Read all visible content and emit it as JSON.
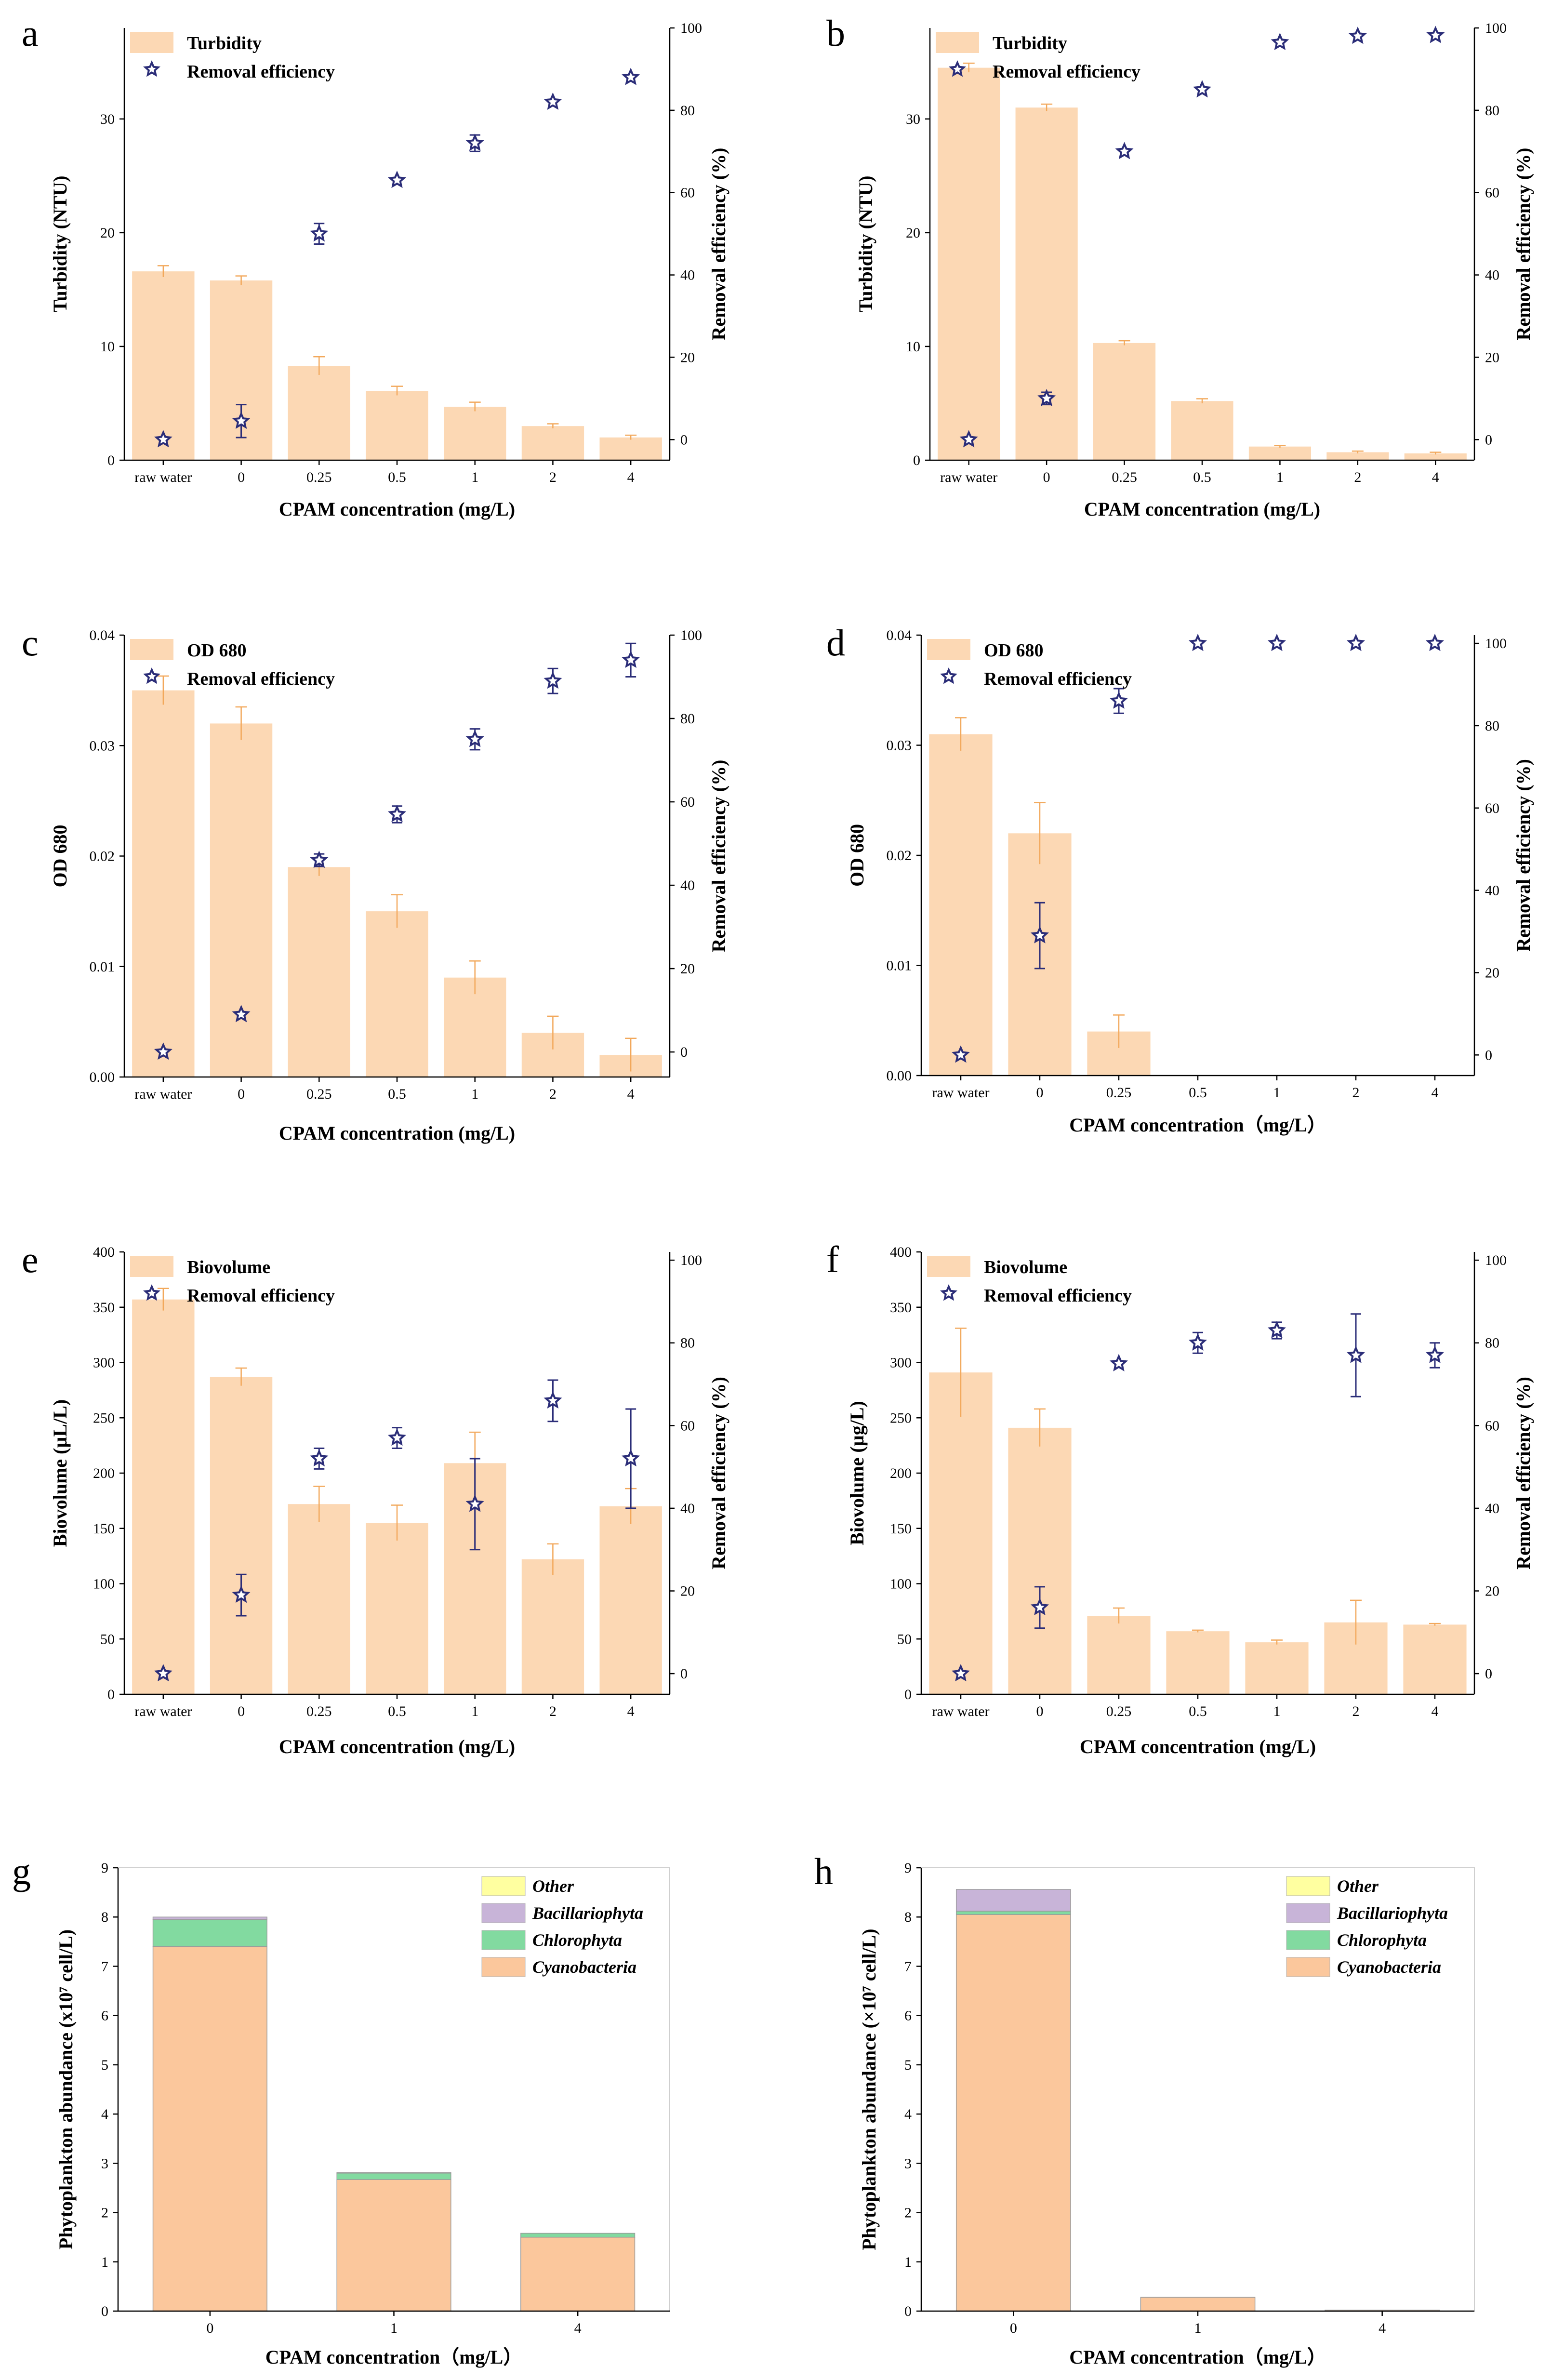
{
  "colors": {
    "bar_fill": "#fcd8b4",
    "err_bar": "#f2a85b",
    "star": "#2b2d78",
    "cyanobacteria": "#fbc79c",
    "chlorophyta": "#82daa0",
    "bacillariophyta": "#c8b4d8",
    "other": "#ffffa0"
  },
  "chart_data": [
    {
      "id": "a",
      "type": "bar",
      "panel_label": "a",
      "xlabel": "CPAM concentration (mg/L)",
      "ylabel": "Turbidity (NTU)",
      "y2label": "Removal efficiency (%)",
      "categories": [
        "raw water",
        "0",
        "0.25",
        "0.5",
        "1",
        "2",
        "4"
      ],
      "ylim": [
        0,
        38
      ],
      "yticks": [
        0,
        10,
        20,
        30
      ],
      "ytick_labels": [
        "0",
        "10",
        "20",
        "30"
      ],
      "y2lim": [
        -5,
        100
      ],
      "y2ticks": [
        0,
        20,
        40,
        60,
        80,
        100
      ],
      "legend": [
        "Turbidity",
        "Removal efficiency"
      ],
      "bars": [
        16.6,
        15.8,
        8.3,
        6.1,
        4.7,
        3.0,
        2.0
      ],
      "bar_err": [
        0.5,
        0.4,
        0.8,
        0.4,
        0.4,
        0.2,
        0.2
      ],
      "stars": [
        0,
        4.5,
        50,
        63,
        72,
        82,
        88
      ],
      "star_err": [
        0,
        4,
        2.5,
        0,
        2,
        0,
        0
      ]
    },
    {
      "id": "b",
      "type": "bar",
      "panel_label": "b",
      "xlabel": "CPAM concentration (mg/L)",
      "ylabel": "Turbidity (NTU)",
      "y2label": "Removal efficiency (%)",
      "categories": [
        "raw water",
        "0",
        "0.25",
        "0.5",
        "1",
        "2",
        "4"
      ],
      "ylim": [
        0,
        38
      ],
      "yticks": [
        0,
        10,
        20,
        30
      ],
      "ytick_labels": [
        "0",
        "10",
        "20",
        "30"
      ],
      "y2lim": [
        -5,
        100
      ],
      "y2ticks": [
        0,
        20,
        40,
        60,
        80,
        100
      ],
      "legend": [
        "Turbidity",
        "Removal efficiency"
      ],
      "bars": [
        34.5,
        31.0,
        10.3,
        5.2,
        1.2,
        0.7,
        0.6
      ],
      "bar_err": [
        0.4,
        0.3,
        0.2,
        0.2,
        0.1,
        0.1,
        0.1
      ],
      "stars": [
        0,
        10,
        70,
        85,
        96.5,
        98,
        98.2
      ],
      "star_err": [
        0,
        1.5,
        0,
        0,
        0,
        0,
        0
      ]
    },
    {
      "id": "c",
      "type": "bar",
      "panel_label": "c",
      "xlabel": "CPAM concentration (mg/L)",
      "ylabel": "OD  680",
      "y2label": "Removal efficiency (%)",
      "categories": [
        "raw water",
        "0",
        "0.25",
        "0.5",
        "1",
        "2",
        "4"
      ],
      "ylim": [
        0,
        0.04
      ],
      "yticks": [
        0,
        0.01,
        0.02,
        0.03,
        0.04
      ],
      "ytick_labels": [
        "0.00",
        "0.01",
        "0.02",
        "0.03",
        "0.04"
      ],
      "y2lim": [
        -6,
        100
      ],
      "y2ticks": [
        0,
        20,
        40,
        60,
        80,
        100
      ],
      "legend": [
        "OD 680",
        "Removal efficiency"
      ],
      "bars": [
        0.035,
        0.032,
        0.019,
        0.015,
        0.009,
        0.004,
        0.002
      ],
      "bar_err": [
        0.0013,
        0.0015,
        0.0008,
        0.0015,
        0.0015,
        0.0015,
        0.0015
      ],
      "stars": [
        0,
        9,
        46,
        57,
        75,
        89,
        94
      ],
      "star_err": [
        0,
        0,
        1.5,
        2,
        2.5,
        3,
        4
      ]
    },
    {
      "id": "d",
      "type": "bar",
      "panel_label": "d",
      "xlabel": "CPAM concentration（mg/L）",
      "ylabel": "OD  680",
      "y2label": "Removal efficiency (%)",
      "categories": [
        "raw water",
        "0",
        "0.25",
        "0.5",
        "1",
        "2",
        "4"
      ],
      "ylim": [
        0,
        0.04
      ],
      "yticks": [
        0,
        0.01,
        0.02,
        0.03,
        0.04
      ],
      "ytick_labels": [
        "0.00",
        "0.01",
        "0.02",
        "0.03",
        "0.04"
      ],
      "y2lim": [
        -5,
        102
      ],
      "y2ticks": [
        0,
        20,
        40,
        60,
        80,
        100
      ],
      "legend": [
        "OD 680",
        "Removal efficiency"
      ],
      "bars": [
        0.031,
        0.022,
        0.004,
        0,
        0,
        0,
        0
      ],
      "bar_err": [
        0.0015,
        0.0028,
        0.0015,
        0,
        0,
        0,
        0
      ],
      "stars": [
        0,
        29,
        86,
        100,
        100,
        100,
        100
      ],
      "star_err": [
        0,
        8,
        3,
        0,
        0,
        0,
        0
      ]
    },
    {
      "id": "e",
      "type": "bar",
      "panel_label": "e",
      "xlabel": "CPAM concentration (mg/L)",
      "ylabel": "Biovolume  (µL/L)",
      "y2label": "Removal efficiency (%)",
      "categories": [
        "raw water",
        "0",
        "0.25",
        "0.5",
        "1",
        "2",
        "4"
      ],
      "ylim": [
        0,
        400
      ],
      "yticks": [
        0,
        50,
        100,
        150,
        200,
        250,
        300,
        350,
        400
      ],
      "ytick_labels": [
        "0",
        "50",
        "100",
        "150",
        "200",
        "250",
        "300",
        "350",
        "400"
      ],
      "y2lim": [
        -5,
        102
      ],
      "y2ticks": [
        0,
        20,
        40,
        60,
        80,
        100
      ],
      "legend": [
        "Biovolume",
        "Removal efficiency"
      ],
      "bars": [
        357,
        287,
        172,
        155,
        209,
        122,
        170
      ],
      "bar_err": [
        10,
        8,
        16,
        16,
        28,
        14,
        16
      ],
      "stars": [
        0,
        19,
        52,
        57,
        41,
        66,
        52
      ],
      "star_err": [
        0,
        5,
        2.5,
        2.5,
        11,
        5,
        12
      ]
    },
    {
      "id": "f",
      "type": "bar",
      "panel_label": "f",
      "xlabel": "CPAM concentration (mg/L)",
      "ylabel": "Biovolume (µg/L)",
      "y2label": "Removal efficiency (%)",
      "categories": [
        "raw water",
        "0",
        "0.25",
        "0.5",
        "1",
        "2",
        "4"
      ],
      "ylim": [
        0,
        400
      ],
      "yticks": [
        0,
        50,
        100,
        150,
        200,
        250,
        300,
        350,
        400
      ],
      "ytick_labels": [
        "0",
        "50",
        "100",
        "150",
        "200",
        "250",
        "300",
        "350",
        "400"
      ],
      "y2lim": [
        -5,
        102
      ],
      "y2ticks": [
        0,
        20,
        40,
        60,
        80,
        100
      ],
      "legend": [
        "Biovolume",
        "Removal efficiency"
      ],
      "bars": [
        291,
        241,
        71,
        57,
        47,
        65,
        63
      ],
      "bar_err": [
        40,
        17,
        7,
        1,
        2,
        20,
        1
      ],
      "stars": [
        0,
        16,
        75,
        80,
        83,
        77,
        77
      ],
      "star_err": [
        0,
        5,
        0,
        2.5,
        2,
        10,
        3
      ]
    },
    {
      "id": "g",
      "type": "bar",
      "panel_label": "g",
      "xlabel": "CPAM concentration（mg/L）",
      "ylabel": "Phytoplankton abundance (x10⁷ cell/L)",
      "categories": [
        "0",
        "1",
        "4"
      ],
      "ylim": [
        0,
        9
      ],
      "yticks": [
        0,
        1,
        2,
        3,
        4,
        5,
        6,
        7,
        8,
        9
      ],
      "legend": [
        "Other",
        "Bacillariophyta",
        "Chlorophyta",
        "Cyanobacteria"
      ],
      "series": [
        {
          "name": "Cyanobacteria",
          "values": [
            7.4,
            2.67,
            1.5
          ]
        },
        {
          "name": "Chlorophyta",
          "values": [
            0.55,
            0.13,
            0.08
          ]
        },
        {
          "name": "Bacillariophyta",
          "values": [
            0.05,
            0.01,
            0
          ]
        },
        {
          "name": "Other",
          "values": [
            0,
            0,
            0
          ]
        }
      ]
    },
    {
      "id": "h",
      "type": "bar",
      "panel_label": "h",
      "xlabel": "CPAM concentration（mg/L）",
      "ylabel": "Phytoplankton abundance (×10⁷ cell/L)",
      "categories": [
        "0",
        "1",
        "4"
      ],
      "ylim": [
        0,
        9
      ],
      "yticks": [
        0,
        1,
        2,
        3,
        4,
        5,
        6,
        7,
        8,
        9
      ],
      "legend": [
        "Other",
        "Bacillariophyta",
        "Chlorophyta",
        "Cyanobacteria"
      ],
      "series": [
        {
          "name": "Cyanobacteria",
          "values": [
            8.05,
            0.28,
            0.02
          ]
        },
        {
          "name": "Chlorophyta",
          "values": [
            0.07,
            0,
            0
          ]
        },
        {
          "name": "Bacillariophyta",
          "values": [
            0.44,
            0,
            0
          ]
        },
        {
          "name": "Other",
          "values": [
            0,
            0,
            0
          ]
        }
      ]
    }
  ]
}
